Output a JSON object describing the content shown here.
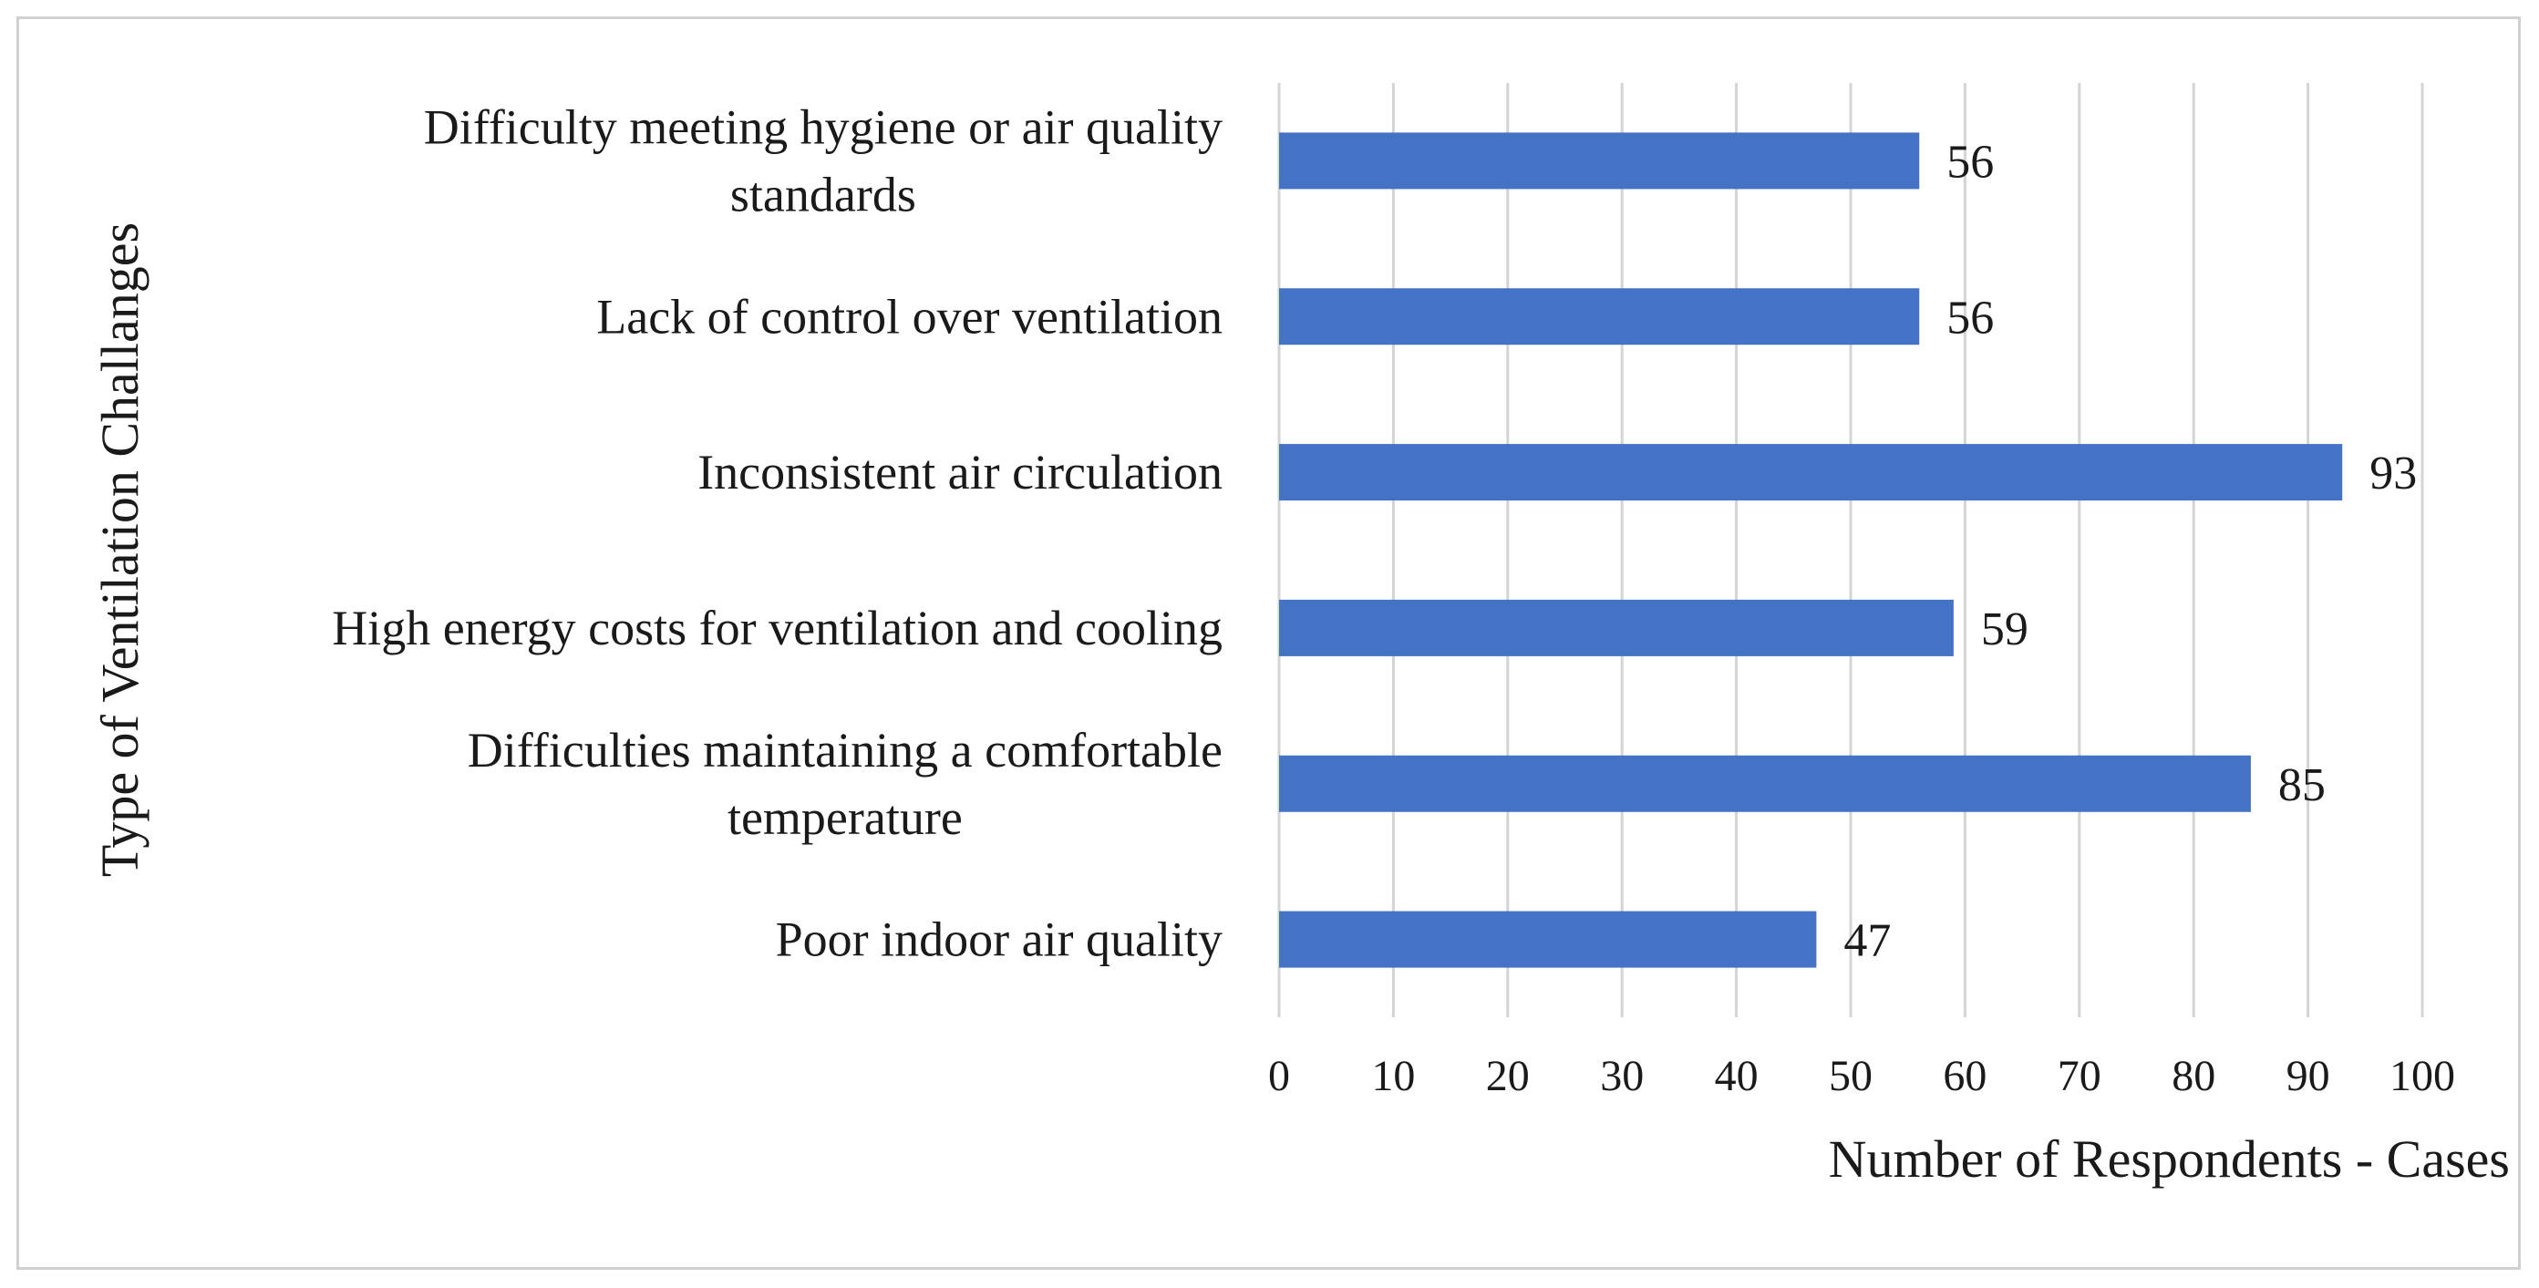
{
  "chart_data": {
    "type": "bar",
    "orientation": "horizontal",
    "categories": [
      [
        "Difficulty meeting hygiene or air quality",
        "standards"
      ],
      [
        "Lack of control over ventilation"
      ],
      [
        "Inconsistent air circulation"
      ],
      [
        "High energy costs for ventilation and cooling"
      ],
      [
        "Difficulties maintaining a comfortable",
        "temperature"
      ],
      [
        "Poor indoor air quality"
      ]
    ],
    "values": [
      56,
      56,
      93,
      59,
      85,
      47
    ],
    "data_labels": [
      "56",
      "56",
      "93",
      "59",
      "85",
      "47"
    ],
    "xlabel": "Number of Respondents - Cases",
    "ylabel": "Type of Ventilation Challanges",
    "xlim": [
      0,
      100
    ],
    "xticks": [
      0,
      10,
      20,
      30,
      40,
      50,
      60,
      70,
      80,
      90,
      100
    ],
    "grid": "vertical",
    "legend": "none",
    "colors": {
      "bar": "#4472c4",
      "grid": "#d4d4d4",
      "text": "#1a1a1a",
      "frame": "#d0d0d0"
    }
  }
}
